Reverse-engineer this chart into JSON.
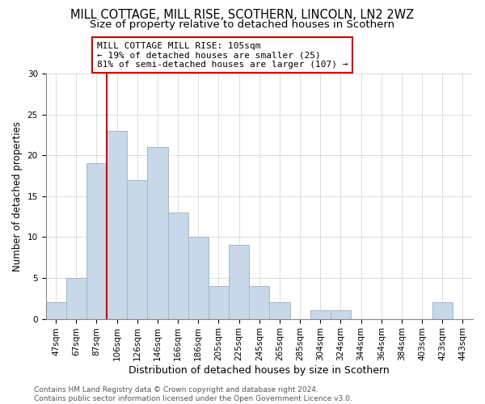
{
  "title": "MILL COTTAGE, MILL RISE, SCOTHERN, LINCOLN, LN2 2WZ",
  "subtitle": "Size of property relative to detached houses in Scothern",
  "xlabel": "Distribution of detached houses by size in Scothern",
  "ylabel": "Number of detached properties",
  "bar_labels": [
    "47sqm",
    "67sqm",
    "87sqm",
    "106sqm",
    "126sqm",
    "146sqm",
    "166sqm",
    "186sqm",
    "205sqm",
    "225sqm",
    "245sqm",
    "265sqm",
    "285sqm",
    "304sqm",
    "324sqm",
    "344sqm",
    "364sqm",
    "384sqm",
    "403sqm",
    "423sqm",
    "443sqm"
  ],
  "bar_heights": [
    2,
    5,
    19,
    23,
    17,
    21,
    13,
    10,
    4,
    9,
    4,
    2,
    0,
    1,
    1,
    0,
    0,
    0,
    0,
    2,
    0
  ],
  "bar_color": "#c8d8e8",
  "bar_edge_color": "#a0b8cc",
  "vline_color": "#cc0000",
  "vline_x_index": 3,
  "annotation_line1": "MILL COTTAGE MILL RISE: 105sqm",
  "annotation_line2": "← 19% of detached houses are smaller (25)",
  "annotation_line3": "81% of semi-detached houses are larger (107) →",
  "ylim": [
    0,
    30
  ],
  "yticks": [
    0,
    5,
    10,
    15,
    20,
    25,
    30
  ],
  "footer_line1": "Contains HM Land Registry data © Crown copyright and database right 2024.",
  "footer_line2": "Contains public sector information licensed under the Open Government Licence v3.0.",
  "title_fontsize": 10.5,
  "subtitle_fontsize": 9.5,
  "xlabel_fontsize": 9,
  "ylabel_fontsize": 8.5,
  "tick_fontsize": 7.5,
  "annotation_fontsize": 8,
  "footer_fontsize": 6.5
}
